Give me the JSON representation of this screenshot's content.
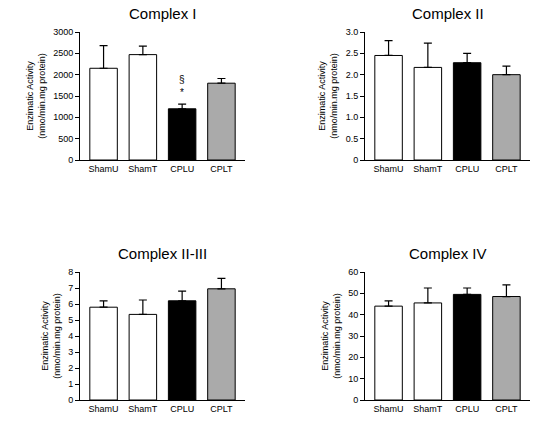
{
  "chart_data": [
    {
      "type": "bar",
      "title": "Complex I",
      "y_label": "Enzimatic Activity\n(nmo/min.mg protein)",
      "categories": [
        "ShamU",
        "ShamT",
        "CPLU",
        "CPLT"
      ],
      "values": [
        2150,
        2470,
        1200,
        1800
      ],
      "errors": [
        530,
        200,
        110,
        110
      ],
      "colors": [
        "#ffffff",
        "#ffffff",
        "#000000",
        "#aaaaaa"
      ],
      "ylim": [
        0,
        3000
      ],
      "yticks": [
        0,
        500,
        1000,
        1500,
        2000,
        2500,
        3000
      ],
      "annotations": [
        {
          "category": "CPLU",
          "text": "*"
        },
        {
          "category": "CPLU",
          "text": "§"
        }
      ]
    },
    {
      "type": "bar",
      "title": "Complex II",
      "y_label": "Enzimatic Activity\n(nmo/min.mg protein)",
      "categories": [
        "ShamU",
        "ShamT",
        "CPLU",
        "CPLT"
      ],
      "values": [
        2.45,
        2.17,
        2.28,
        2.0
      ],
      "errors": [
        0.35,
        0.57,
        0.22,
        0.2
      ],
      "colors": [
        "#ffffff",
        "#ffffff",
        "#000000",
        "#aaaaaa"
      ],
      "ylim": [
        0,
        3
      ],
      "yticks": [
        0,
        0.5,
        {
          "value": 1,
          "label": "1.0"
        },
        1.5,
        {
          "value": 2,
          "label": "2.0"
        },
        2.5,
        {
          "value": 3,
          "label": "3.0"
        }
      ]
    },
    {
      "type": "bar",
      "title": "Complex II-III",
      "y_label": "Enzimatic Activity\n(nmo/min.mg protein)",
      "categories": [
        "ShamU",
        "ShamT",
        "CPLU",
        "CPLT"
      ],
      "values": [
        5.8,
        5.35,
        6.2,
        6.95
      ],
      "errors": [
        0.4,
        0.9,
        0.6,
        0.65
      ],
      "colors": [
        "#ffffff",
        "#ffffff",
        "#000000",
        "#aaaaaa"
      ],
      "ylim": [
        0,
        8
      ],
      "yticks": [
        0,
        1,
        2,
        3,
        4,
        5,
        6,
        7,
        8
      ]
    },
    {
      "type": "bar",
      "title": "Complex IV",
      "y_label": "Enzimatic Activity\n(nmo/min.mg protein)",
      "categories": [
        "ShamU",
        "ShamT",
        "CPLU",
        "CPLT"
      ],
      "values": [
        44,
        45.5,
        49.5,
        48.5
      ],
      "errors": [
        2.5,
        7,
        3,
        5.5
      ],
      "colors": [
        "#ffffff",
        "#ffffff",
        "#000000",
        "#aaaaaa"
      ],
      "ylim": [
        0,
        60
      ],
      "yticks": [
        0,
        10,
        20,
        30,
        40,
        50,
        60
      ]
    }
  ]
}
